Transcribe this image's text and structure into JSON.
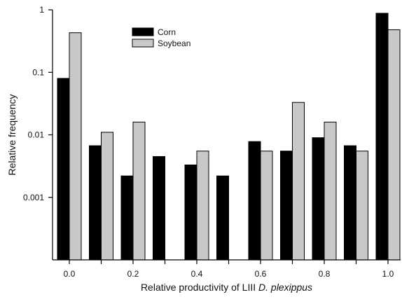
{
  "chart_data": {
    "type": "bar",
    "scale": "log",
    "ylim": [
      0.0001,
      1
    ],
    "xlabel_parts": [
      {
        "text": "Relative productivity of LIII ",
        "italic": false
      },
      {
        "text": "D. plexippus",
        "italic": true
      }
    ],
    "ylabel": "Relative frequency",
    "x": [
      0.0,
      0.1,
      0.2,
      0.3,
      0.4,
      0.5,
      0.6,
      0.7,
      0.8,
      0.9,
      1.0
    ],
    "x_tick_labels": [
      "0.0",
      "0.2",
      "0.4",
      "0.6",
      "0.8",
      "1.0"
    ],
    "y_tick_labels": [
      "0.001",
      "0.01",
      "0.1",
      "1"
    ],
    "y_tick_values": [
      0.001,
      0.01,
      0.1,
      1
    ],
    "legend_position": "top-left",
    "grid": false,
    "series": [
      {
        "name": "Corn",
        "color": "#000000",
        "values": [
          0.08,
          0.0067,
          0.0022,
          0.0045,
          0.0033,
          0.0022,
          0.0078,
          0.0055,
          0.009,
          0.0067,
          0.88
        ]
      },
      {
        "name": "Soybean",
        "color": "#c8c8c8",
        "values": [
          0.43,
          0.011,
          0.016,
          null,
          0.0055,
          null,
          0.0055,
          0.033,
          0.016,
          0.0055,
          0.48
        ]
      }
    ]
  }
}
